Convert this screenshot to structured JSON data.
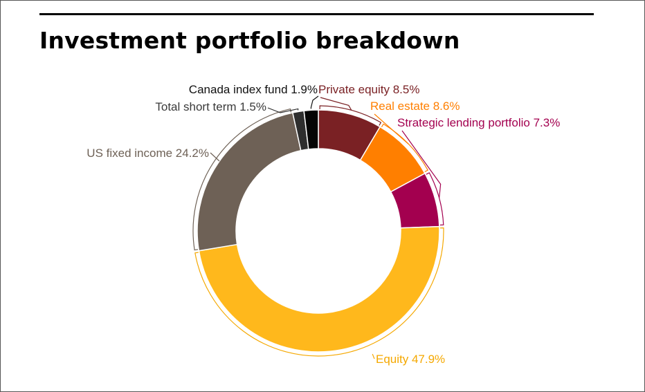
{
  "chart_data": {
    "type": "pie",
    "title": "Investment portfolio breakdown",
    "slices": [
      {
        "label": "Private equity 8.5%",
        "name": "Private equity",
        "value": 8.5,
        "color": "#7a2124",
        "label_color": "#7a2124"
      },
      {
        "label": "Real estate 8.6%",
        "name": "Real estate",
        "value": 8.6,
        "color": "#ff7f00",
        "label_color": "#ff7f00"
      },
      {
        "label": "Strategic lending portfolio 7.3%",
        "name": "Strategic lending portfolio",
        "value": 7.3,
        "color": "#a3004f",
        "label_color": "#a3004f"
      },
      {
        "label": "Equity 47.9%",
        "name": "Equity",
        "value": 47.9,
        "color": "#ffb81c",
        "label_color": "#f5a800"
      },
      {
        "label": "US fixed income 24.2%",
        "name": "US fixed income",
        "value": 24.2,
        "color": "#6e6156",
        "label_color": "#6e6156"
      },
      {
        "label": "Total short term 1.5%",
        "name": "Total short term",
        "value": 1.5,
        "color": "#2e2e2e",
        "label_color": "#3a3a3a"
      },
      {
        "label": "Canada index fund 1.9%",
        "name": "Canada index fund",
        "value": 1.9,
        "color": "#050505",
        "label_color": "#111111"
      }
    ]
  }
}
